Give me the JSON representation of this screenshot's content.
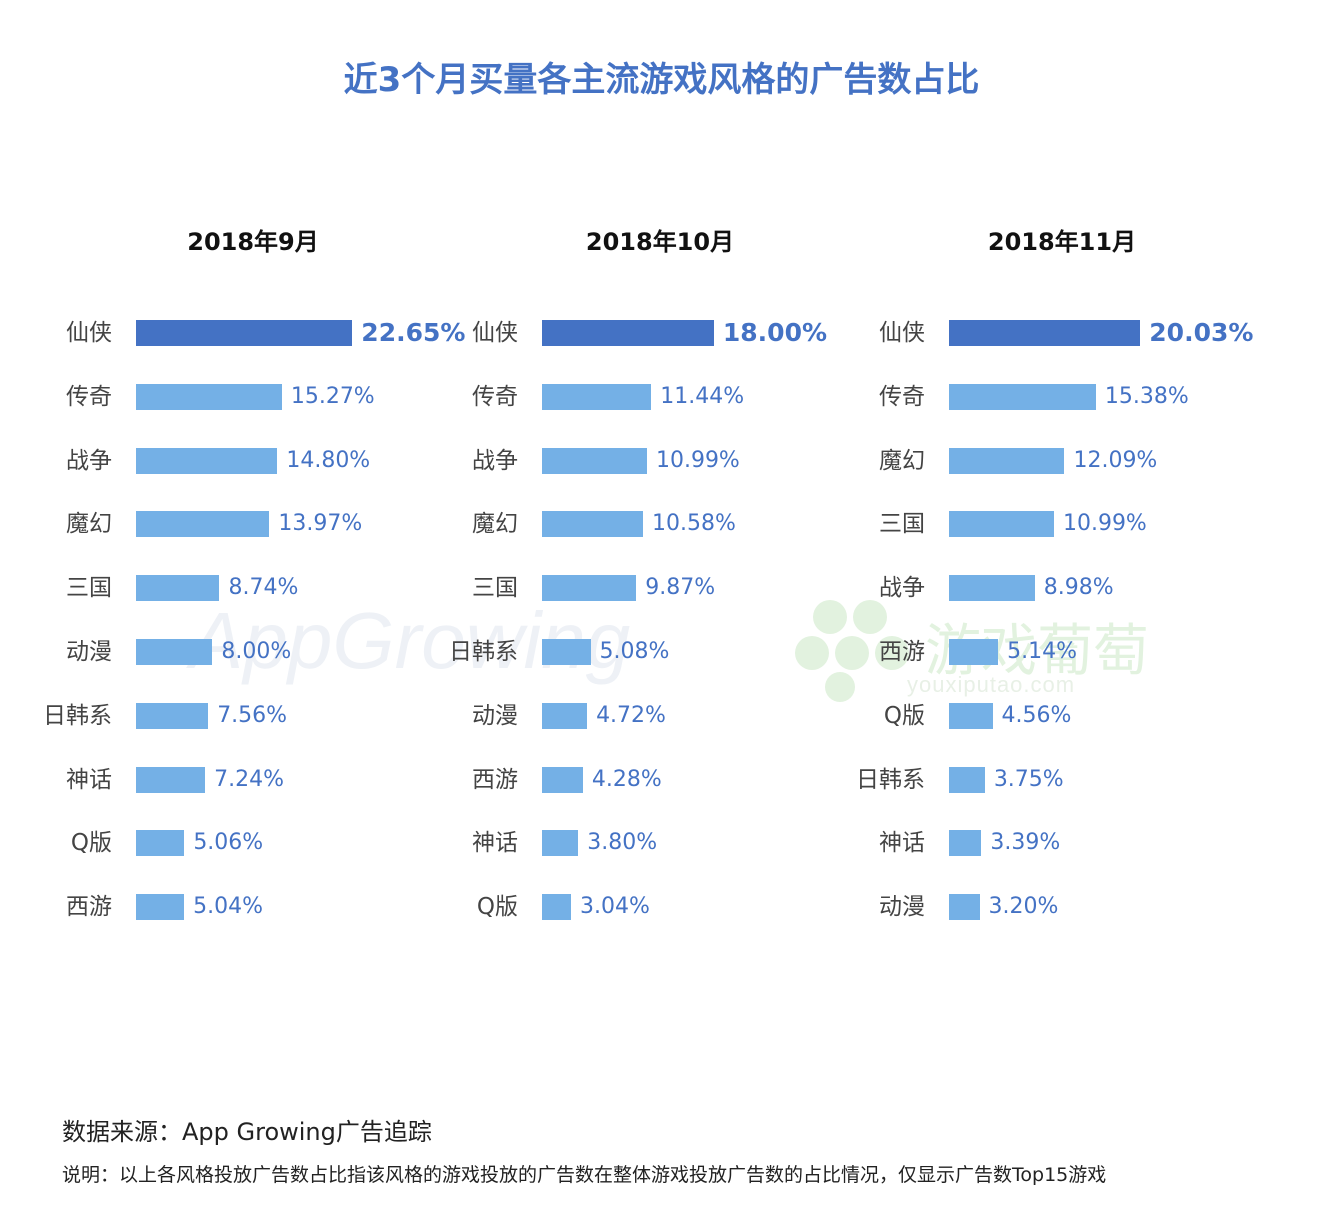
{
  "title": "近3个月买量各主流游戏风格的广告数占比",
  "colors": {
    "title": "#4472c4",
    "top_bar": "#4472c4",
    "bar": "#74b0e6",
    "value_text": "#4472c4"
  },
  "watermarks": {
    "app_growing": "AppGrowing",
    "youxi_cn": "游戏葡萄",
    "youxi_url": "youxiputao.com"
  },
  "chart_data": [
    {
      "type": "bar",
      "orientation": "horizontal",
      "title": "2018年9月",
      "categories": [
        "仙侠",
        "传奇",
        "战争",
        "魔幻",
        "三国",
        "动漫",
        "日韩系",
        "神话",
        "Q版",
        "西游"
      ],
      "values": [
        22.65,
        15.27,
        14.8,
        13.97,
        8.74,
        8.0,
        7.56,
        7.24,
        5.06,
        5.04
      ],
      "labels": [
        "22.65%",
        "15.27%",
        "14.80%",
        "13.97%",
        "8.74%",
        "8.00%",
        "7.56%",
        "7.24%",
        "5.06%",
        "5.04%"
      ],
      "unit": "%"
    },
    {
      "type": "bar",
      "orientation": "horizontal",
      "title": "2018年10月",
      "categories": [
        "仙侠",
        "传奇",
        "战争",
        "魔幻",
        "三国",
        "日韩系",
        "动漫",
        "西游",
        "神话",
        "Q版"
      ],
      "values": [
        18.0,
        11.44,
        10.99,
        10.58,
        9.87,
        5.08,
        4.72,
        4.28,
        3.8,
        3.04
      ],
      "labels": [
        "18.00%",
        "11.44%",
        "10.99%",
        "10.58%",
        "9.87%",
        "5.08%",
        "4.72%",
        "4.28%",
        "3.80%",
        "3.04%"
      ],
      "unit": "%"
    },
    {
      "type": "bar",
      "orientation": "horizontal",
      "title": "2018年11月",
      "categories": [
        "仙侠",
        "传奇",
        "魔幻",
        "三国",
        "战争",
        "西游",
        "Q版",
        "日韩系",
        "神话",
        "动漫"
      ],
      "values": [
        20.03,
        15.38,
        12.09,
        10.99,
        8.98,
        5.14,
        4.56,
        3.75,
        3.39,
        3.2
      ],
      "labels": [
        "20.03%",
        "15.38%",
        "12.09%",
        "10.99%",
        "8.98%",
        "5.14%",
        "4.56%",
        "3.75%",
        "3.39%",
        "3.20%"
      ],
      "unit": "%"
    }
  ],
  "footer": {
    "source": "数据来源：App Growing广告追踪",
    "note": "说明：以上各风格投放广告数占比指该风格的游戏投放的广告数在整体游戏投放广告数的占比情况，仅显示广告数Top15游戏"
  }
}
